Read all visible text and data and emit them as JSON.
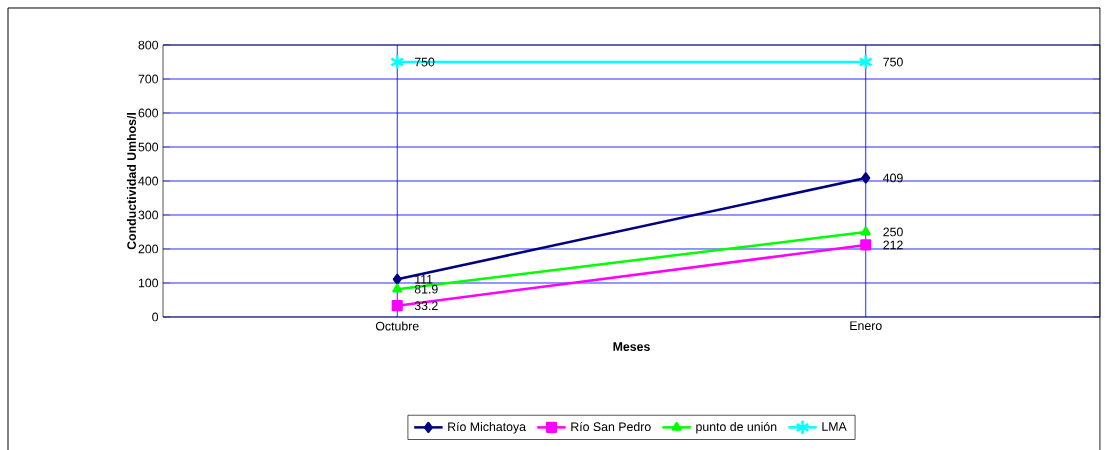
{
  "chart_data": {
    "type": "line",
    "xlabel": "Meses",
    "ylabel": "Conductividad Umhos/l",
    "categories": [
      "Octubre",
      "Enero"
    ],
    "series": [
      {
        "name": "Río Michatoya",
        "color": "#000080",
        "marker": "diamond",
        "values": [
          111,
          409
        ]
      },
      {
        "name": "Río San Pedro",
        "color": "#ff00ff",
        "marker": "square",
        "values": [
          33.2,
          212
        ]
      },
      {
        "name": "punto de unión",
        "color": "#00ff00",
        "marker": "triangle",
        "values": [
          81.9,
          250
        ]
      },
      {
        "name": "LMA",
        "color": "#00ffff",
        "marker": "cross",
        "values": [
          750,
          750
        ]
      }
    ],
    "ylim": [
      0,
      800
    ],
    "yticks": [
      0,
      100,
      200,
      300,
      400,
      500,
      600,
      700,
      800
    ],
    "grid": true,
    "legend": "bottom",
    "data_labels": true,
    "line_style": "solid"
  }
}
